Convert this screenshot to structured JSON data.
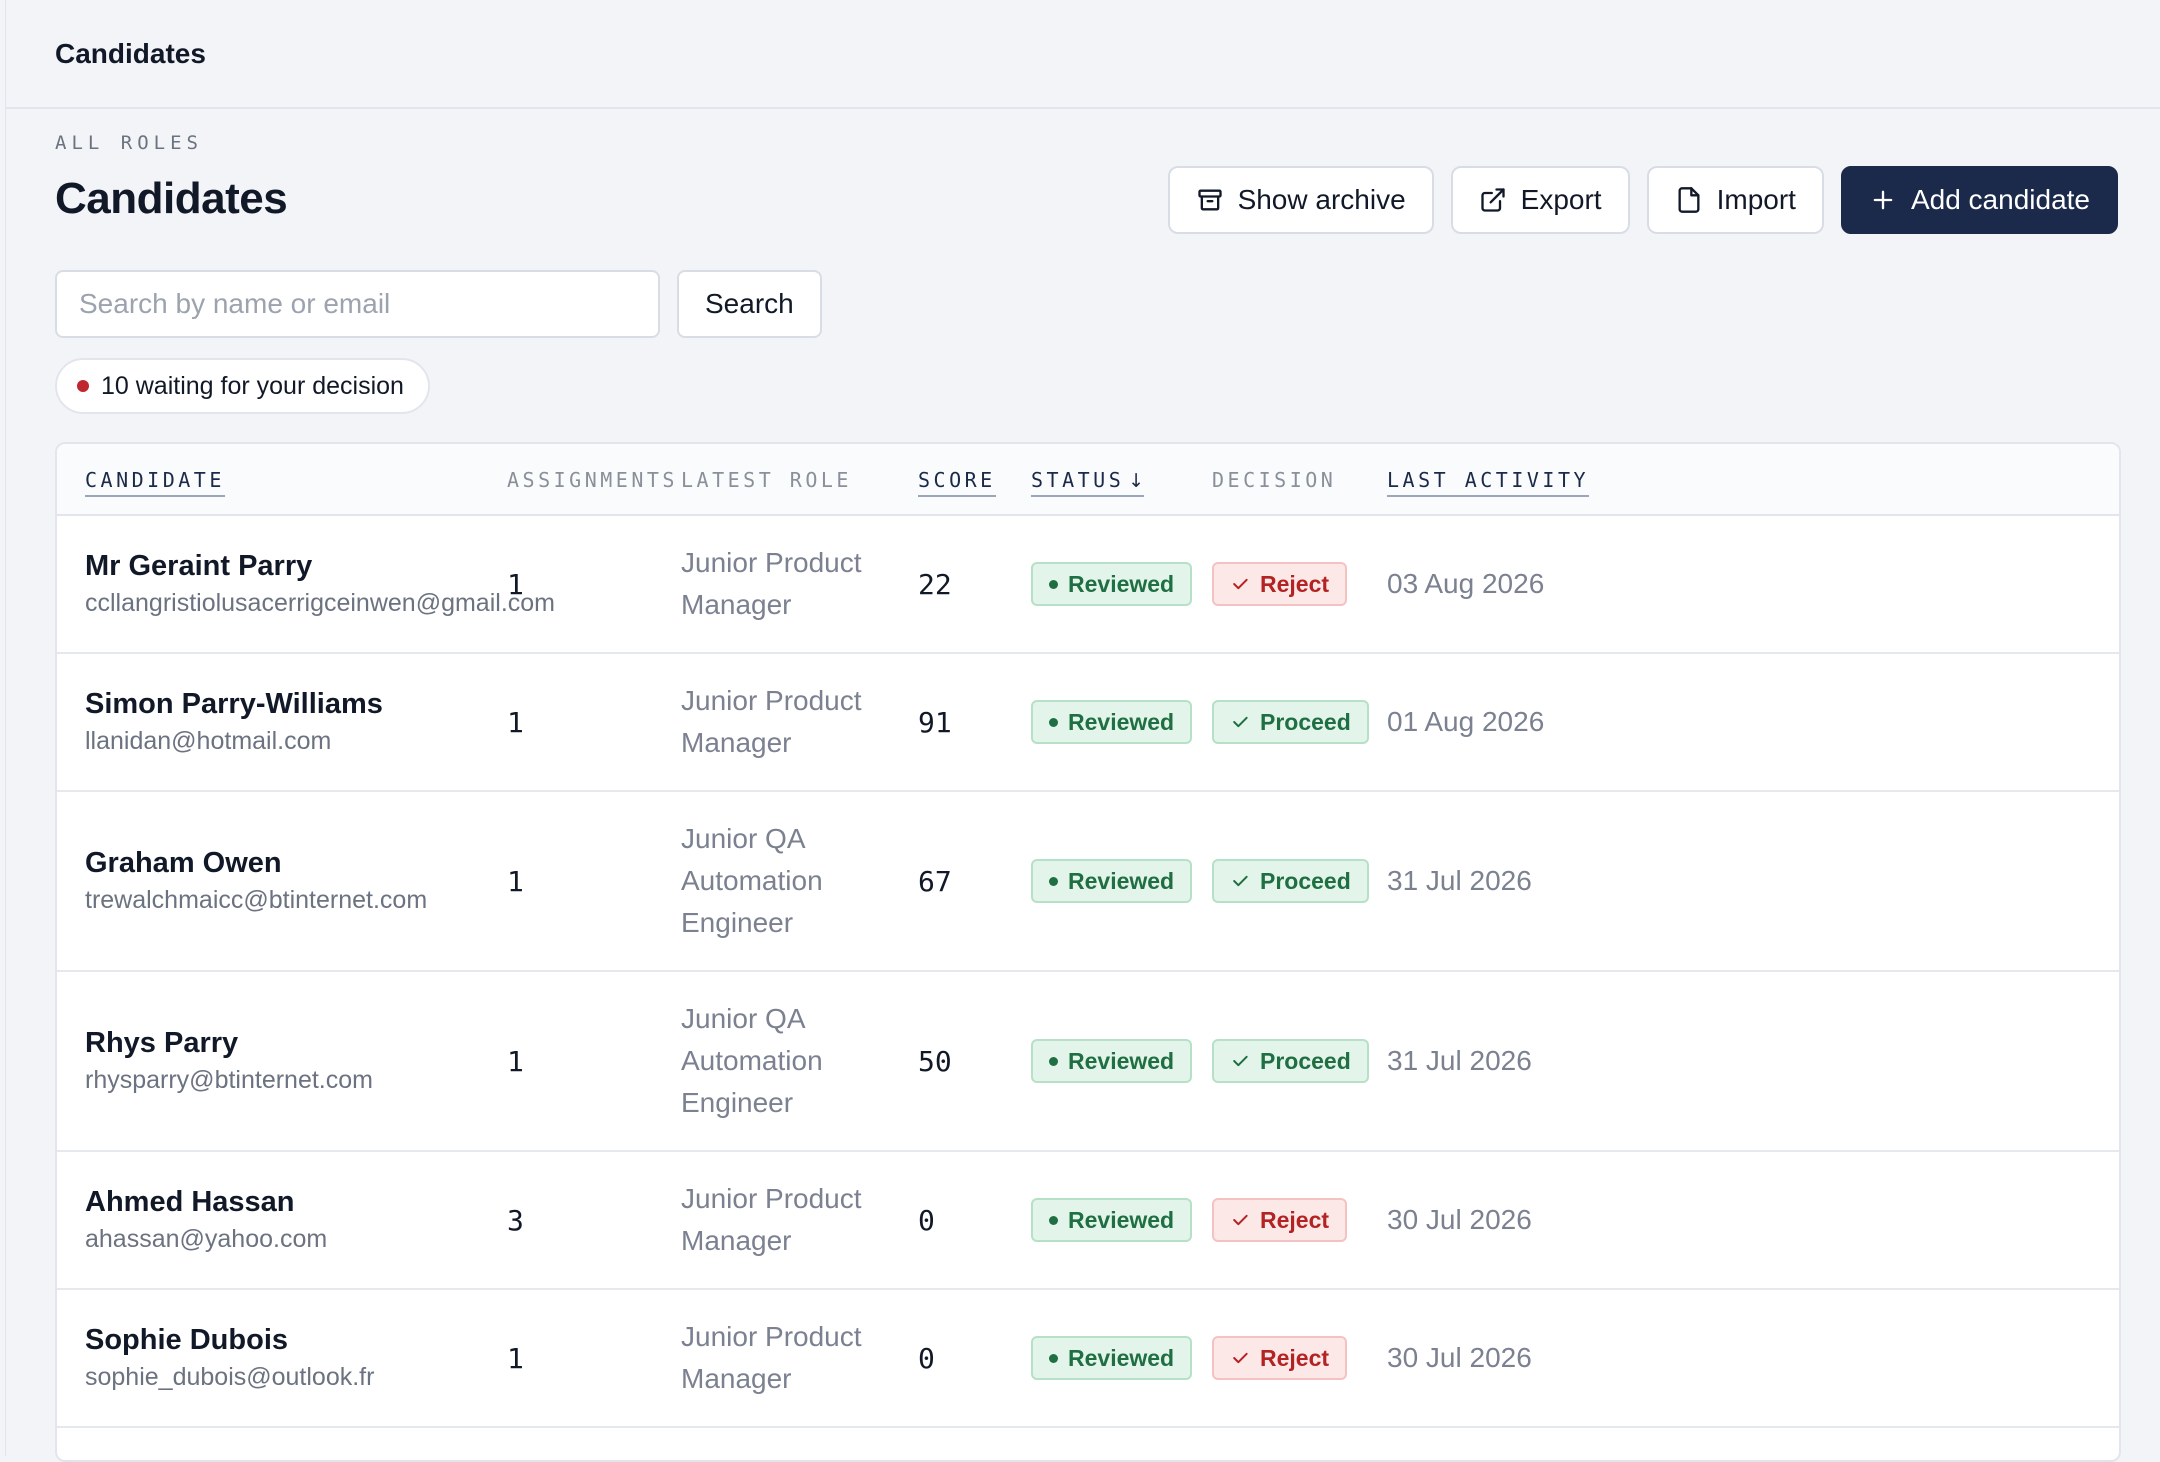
{
  "topbar": {
    "title": "Candidates"
  },
  "header": {
    "eyebrow": "ALL ROLES",
    "title": "Candidates"
  },
  "actions": {
    "show_archive": "Show archive",
    "export": "Export",
    "import": "Import",
    "add_candidate": "Add candidate"
  },
  "search": {
    "placeholder": "Search by name or email",
    "value": "",
    "button": "Search"
  },
  "pending": {
    "text": "10 waiting for your decision"
  },
  "table": {
    "headers": {
      "candidate": "CANDIDATE",
      "assignments": "ASSIGNMENTS",
      "latest_role": "LATEST ROLE",
      "score": "SCORE",
      "status": "STATUS",
      "status_sort": "↓",
      "decision": "DECISION",
      "last_activity": "LAST ACTIVITY"
    },
    "rows": [
      {
        "name": "Mr Geraint Parry",
        "email": "ccllangristiolusacerrigceinwen@gmail.com",
        "assignments": "1",
        "role": "Junior Product Manager",
        "score": "22",
        "status": "Reviewed",
        "decision": "Reject",
        "activity": "03 Aug 2026"
      },
      {
        "name": "Simon Parry-Williams",
        "email": "llanidan@hotmail.com",
        "assignments": "1",
        "role": "Junior Product Manager",
        "score": "91",
        "status": "Reviewed",
        "decision": "Proceed",
        "activity": "01 Aug 2026"
      },
      {
        "name": "Graham Owen",
        "email": "trewalchmaicc@btinternet.com",
        "assignments": "1",
        "role": "Junior QA Automation Engineer",
        "score": "67",
        "status": "Reviewed",
        "decision": "Proceed",
        "activity": "31 Jul 2026"
      },
      {
        "name": "Rhys Parry",
        "email": "rhysparry@btinternet.com",
        "assignments": "1",
        "role": "Junior QA Automation Engineer",
        "score": "50",
        "status": "Reviewed",
        "decision": "Proceed",
        "activity": "31 Jul 2026"
      },
      {
        "name": "Ahmed Hassan",
        "email": "ahassan@yahoo.com",
        "assignments": "3",
        "role": "Junior Product Manager",
        "score": "0",
        "status": "Reviewed",
        "decision": "Reject",
        "activity": "30 Jul 2026"
      },
      {
        "name": "Sophie Dubois",
        "email": "sophie_dubois@outlook.fr",
        "assignments": "1",
        "role": "Junior Product Manager",
        "score": "0",
        "status": "Reviewed",
        "decision": "Reject",
        "activity": "30 Jul 2026"
      }
    ]
  },
  "colors": {
    "primary": "#1b2a4a",
    "success": "#1f6f43",
    "danger": "#b42323",
    "pending_dot": "#c0262d"
  }
}
